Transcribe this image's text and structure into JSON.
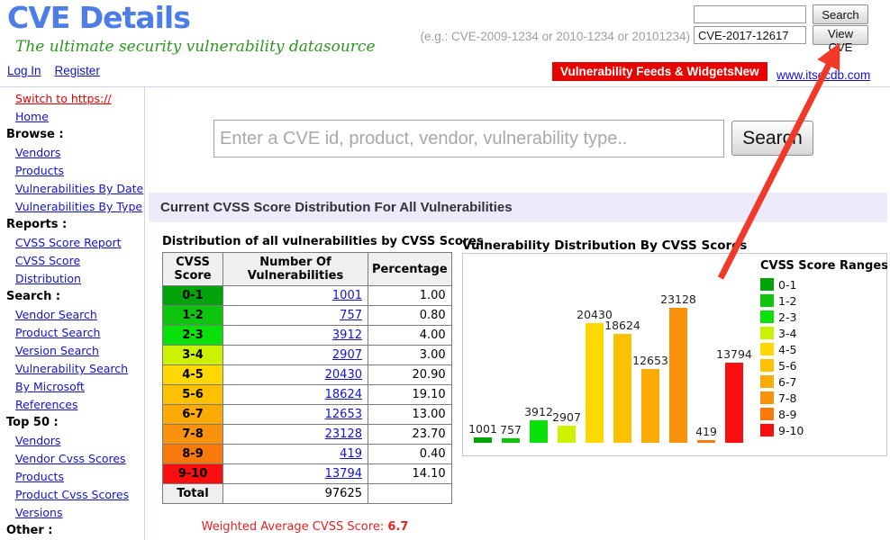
{
  "header": {
    "logo": "CVE Details",
    "tagline": "The ultimate security vulnerability datasource",
    "example_hint": "(e.g.: CVE-2009-1234 or 2010-1234 or 20101234)",
    "top_search": {
      "value": "",
      "button": "Search"
    },
    "cve_lookup": {
      "value": "CVE-2017-12617",
      "button": "View CVE"
    },
    "login_link": "Log In",
    "register_link": "Register",
    "feeds_banner": "Vulnerability Feeds & Widgets",
    "feeds_banner_new": "New",
    "itsecdb_link": "www.itsecdb.com",
    "banner_color": "#e60400"
  },
  "sidebar": {
    "items": [
      {
        "type": "link",
        "label": "Switch to https://",
        "color": "#e60000"
      },
      {
        "type": "link",
        "label": "Home"
      },
      {
        "type": "header",
        "label": "Browse :"
      },
      {
        "type": "link",
        "label": "Vendors"
      },
      {
        "type": "link",
        "label": "Products"
      },
      {
        "type": "link",
        "label": "Vulnerabilities By Date"
      },
      {
        "type": "link",
        "label": "Vulnerabilities By Type"
      },
      {
        "type": "header",
        "label": "Reports :"
      },
      {
        "type": "link",
        "label": "CVSS Score Report"
      },
      {
        "type": "link",
        "label": "CVSS Score"
      },
      {
        "type": "link",
        "label": "Distribution"
      },
      {
        "type": "header",
        "label": "Search :"
      },
      {
        "type": "link",
        "label": "Vendor Search"
      },
      {
        "type": "link",
        "label": "Product Search"
      },
      {
        "type": "link",
        "label": "Version Search"
      },
      {
        "type": "link",
        "label": "Vulnerability Search"
      },
      {
        "type": "link",
        "label": "By Microsoft"
      },
      {
        "type": "link",
        "label": "References"
      },
      {
        "type": "header",
        "label": "Top 50 :"
      },
      {
        "type": "link",
        "label": "Vendors"
      },
      {
        "type": "link",
        "label": "Vendor Cvss Scores"
      },
      {
        "type": "link",
        "label": "Products"
      },
      {
        "type": "link",
        "label": "Product Cvss Scores"
      },
      {
        "type": "link",
        "label": "Versions"
      },
      {
        "type": "header",
        "label": "Other :"
      }
    ]
  },
  "main": {
    "search": {
      "placeholder": "Enter a CVE id, product, vendor, vulnerability type..",
      "button": "Search"
    },
    "section_title": "Current CVSS Score Distribution For All Vulnerabilities",
    "table": {
      "title": "Distribution of all vulnerabilities by CVSS Scores",
      "columns": [
        "CVSS Score",
        "Number Of Vulnerabilities",
        "Percentage"
      ],
      "rows": [
        {
          "range": "0-1",
          "color": "#00a40a",
          "count": "1001",
          "pct": "1.00"
        },
        {
          "range": "1-2",
          "color": "#0cc50c",
          "count": "757",
          "pct": "0.80"
        },
        {
          "range": "2-3",
          "color": "#0ae00a",
          "count": "3912",
          "pct": "4.00"
        },
        {
          "range": "3-4",
          "color": "#ccf102",
          "count": "2907",
          "pct": "3.00"
        },
        {
          "range": "4-5",
          "color": "#ffd802",
          "count": "20430",
          "pct": "20.90"
        },
        {
          "range": "5-6",
          "color": "#fec102",
          "count": "18624",
          "pct": "19.10"
        },
        {
          "range": "6-7",
          "color": "#fcaa05",
          "count": "12653",
          "pct": "13.00"
        },
        {
          "range": "7-8",
          "color": "#fb920d",
          "count": "23128",
          "pct": "23.70"
        },
        {
          "range": "8-9",
          "color": "#f87a0b",
          "count": "419",
          "pct": "0.40"
        },
        {
          "range": "9-10",
          "color": "#f90f0f",
          "count": "13794",
          "pct": "14.10"
        }
      ],
      "total_label": "Total",
      "total_count": "97625",
      "weighted_label": "Weighted Average CVSS Score:",
      "weighted_value": "6.7"
    }
  },
  "chart_data": {
    "type": "bar",
    "title": "Vulnerability Distribution By CVSS Scores",
    "categories": [
      "0-1",
      "1-2",
      "2-3",
      "3-4",
      "4-5",
      "5-6",
      "6-7",
      "7-8",
      "8-9",
      "9-10"
    ],
    "values": [
      1001,
      757,
      3912,
      2907,
      20430,
      18624,
      12653,
      23128,
      419,
      13794
    ],
    "colors": [
      "#00a40a",
      "#0cc50c",
      "#0ae00a",
      "#ccf102",
      "#ffd802",
      "#fec102",
      "#fcaa05",
      "#fb920d",
      "#f87a0b",
      "#f90f0f"
    ],
    "data_labels": true,
    "legend_title": "CVSS Score Ranges",
    "legend_position": "right",
    "grid": false,
    "ylim": [
      0,
      23128
    ]
  },
  "annotation": {
    "arrow_color": "#f1392a",
    "arrow_points_to": "View CVE button"
  }
}
